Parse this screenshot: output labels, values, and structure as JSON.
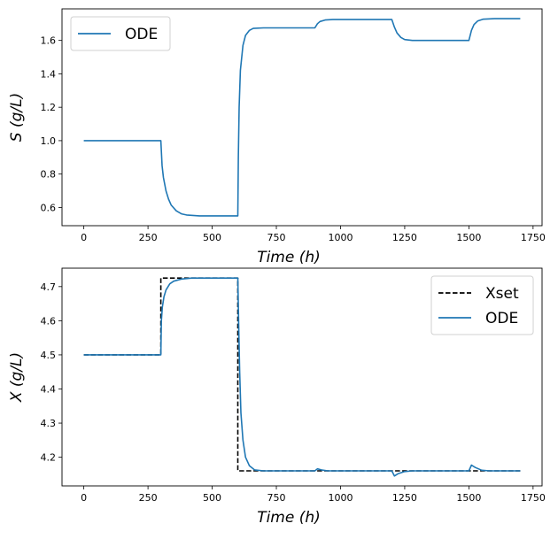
{
  "chart_data": [
    {
      "type": "line",
      "xlabel": "Time  (h)",
      "ylabel": "S  (g/L)",
      "xlim": [
        -85,
        1785
      ],
      "ylim": [
        0.491,
        1.789
      ],
      "xticks": [
        0,
        250,
        500,
        750,
        1000,
        1250,
        1500,
        1750
      ],
      "yticks": [
        0.6,
        0.8,
        1.0,
        1.2,
        1.4,
        1.6
      ],
      "ytick_labels": [
        "0.6",
        "0.8",
        "1.0",
        "1.2",
        "1.4",
        "1.6"
      ],
      "grid": false,
      "legend": "top-left",
      "series": [
        {
          "name": "ODE",
          "color": "#1f77b4",
          "style": "solid",
          "x": [
            0,
            300,
            305,
            310,
            320,
            330,
            340,
            360,
            380,
            400,
            450,
            600,
            602,
            605,
            610,
            620,
            630,
            645,
            660,
            700,
            900,
            910,
            920,
            940,
            970,
            1200,
            1210,
            1220,
            1235,
            1250,
            1280,
            1500,
            1510,
            1520,
            1535,
            1555,
            1600,
            1700
          ],
          "y": [
            1.0,
            1.0,
            0.85,
            0.78,
            0.7,
            0.65,
            0.615,
            0.58,
            0.562,
            0.555,
            0.55,
            0.55,
            0.9,
            1.2,
            1.42,
            1.57,
            1.63,
            1.66,
            1.672,
            1.675,
            1.675,
            1.7,
            1.713,
            1.722,
            1.725,
            1.725,
            1.68,
            1.645,
            1.618,
            1.605,
            1.6,
            1.6,
            1.66,
            1.695,
            1.717,
            1.727,
            1.73,
            1.73
          ]
        }
      ]
    },
    {
      "type": "line",
      "xlabel": "Time  (h)",
      "ylabel": "X  (g/L)",
      "xlim": [
        -85,
        1785
      ],
      "ylim": [
        4.116,
        4.754
      ],
      "xticks": [
        0,
        250,
        500,
        750,
        1000,
        1250,
        1500,
        1750
      ],
      "yticks": [
        4.2,
        4.3,
        4.4,
        4.5,
        4.6,
        4.7
      ],
      "ytick_labels": [
        "4.2",
        "4.3",
        "4.4",
        "4.5",
        "4.6",
        "4.7"
      ],
      "grid": false,
      "legend": "top-right",
      "series": [
        {
          "name": "Xset",
          "color": "#000000",
          "style": "dashed",
          "x": [
            0,
            300,
            300,
            600,
            600,
            1700
          ],
          "y": [
            4.5,
            4.5,
            4.725,
            4.725,
            4.16,
            4.16
          ]
        },
        {
          "name": "ODE",
          "color": "#1f77b4",
          "style": "solid",
          "x": [
            0,
            300,
            302,
            306,
            312,
            320,
            335,
            350,
            380,
            420,
            600,
            603,
            607,
            612,
            620,
            630,
            645,
            665,
            700,
            900,
            910,
            925,
            950,
            1200,
            1210,
            1225,
            1250,
            1280,
            1500,
            1510,
            1525,
            1550,
            1580,
            1700
          ],
          "y": [
            4.5,
            4.5,
            4.6,
            4.64,
            4.67,
            4.69,
            4.708,
            4.716,
            4.722,
            4.725,
            4.725,
            4.6,
            4.45,
            4.33,
            4.25,
            4.2,
            4.175,
            4.163,
            4.16,
            4.16,
            4.166,
            4.163,
            4.16,
            4.16,
            4.145,
            4.152,
            4.158,
            4.16,
            4.16,
            4.177,
            4.17,
            4.162,
            4.16,
            4.16
          ]
        }
      ]
    }
  ]
}
